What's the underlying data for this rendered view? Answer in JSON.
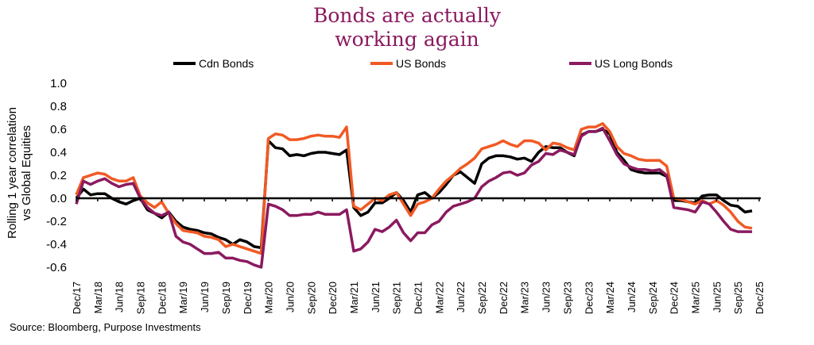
{
  "chart_data": {
    "type": "line",
    "title": "Bonds are actually working again",
    "title_lines": [
      "Bonds are actually",
      "working again"
    ],
    "title_color": "#8b1a5f",
    "ylabel_lines": [
      "Rolling 1 year correlation",
      "vs Global Equities"
    ],
    "xlabel": "",
    "ylim": [
      -0.6,
      1.0
    ],
    "yticks": [
      "1.0",
      "0.8",
      "0.6",
      "0.4",
      "0.2",
      "0.0",
      "-0.2",
      "-0.4",
      "-0.6"
    ],
    "ytick_values": [
      1.0,
      0.8,
      0.6,
      0.4,
      0.2,
      0.0,
      -0.2,
      -0.4,
      -0.6
    ],
    "xticks": [
      "Dec/17",
      "Mar/18",
      "Jun/18",
      "Sep/18",
      "Dec/18",
      "Mar/19",
      "Jun/19",
      "Sep/19",
      "Dec/19",
      "Mar/20",
      "Jun/20",
      "Sep/20",
      "Dec/20",
      "Mar/21",
      "Jun/21",
      "Sep/21",
      "Dec/21",
      "Mar/22",
      "Jun/22",
      "Sep/22",
      "Dec/22",
      "Mar/23",
      "Jun/23",
      "Sep/23",
      "Dec/23",
      "Mar/24",
      "Jun/24",
      "Sep/24",
      "Dec/24",
      "Mar/25",
      "Jun/25",
      "Sep/25",
      "Dec/25"
    ],
    "grid": false,
    "legend_position": "top",
    "x": [
      "2017-12",
      "2018-01",
      "2018-02",
      "2018-03",
      "2018-04",
      "2018-05",
      "2018-06",
      "2018-07",
      "2018-08",
      "2018-09",
      "2018-10",
      "2018-11",
      "2018-12",
      "2019-01",
      "2019-02",
      "2019-03",
      "2019-04",
      "2019-05",
      "2019-06",
      "2019-07",
      "2019-08",
      "2019-09",
      "2019-10",
      "2019-11",
      "2019-12",
      "2020-01",
      "2020-02",
      "2020-03",
      "2020-04",
      "2020-05",
      "2020-06",
      "2020-07",
      "2020-08",
      "2020-09",
      "2020-10",
      "2020-11",
      "2020-12",
      "2021-01",
      "2021-02",
      "2021-03",
      "2021-04",
      "2021-05",
      "2021-06",
      "2021-07",
      "2021-08",
      "2021-09",
      "2021-10",
      "2021-11",
      "2021-12",
      "2022-01",
      "2022-02",
      "2022-03",
      "2022-04",
      "2022-05",
      "2022-06",
      "2022-07",
      "2022-08",
      "2022-09",
      "2022-10",
      "2022-11",
      "2022-12",
      "2023-01",
      "2023-02",
      "2023-03",
      "2023-04",
      "2023-05",
      "2023-06",
      "2023-07",
      "2023-08",
      "2023-09",
      "2023-10",
      "2023-11",
      "2023-12",
      "2024-01",
      "2024-02",
      "2024-03",
      "2024-04",
      "2024-05",
      "2024-06",
      "2024-07",
      "2024-08",
      "2024-09",
      "2024-10",
      "2024-11",
      "2024-12",
      "2025-01",
      "2025-02",
      "2025-03",
      "2025-04",
      "2025-05",
      "2025-06",
      "2025-07",
      "2025-08",
      "2025-09",
      "2025-10",
      "2025-11"
    ],
    "series": [
      {
        "name": "Cdn Bonds",
        "color": "#000000",
        "values": [
          0.0,
          0.08,
          0.03,
          0.04,
          0.04,
          0.0,
          -0.03,
          -0.05,
          -0.02,
          0.0,
          -0.1,
          -0.13,
          -0.17,
          -0.12,
          -0.2,
          -0.25,
          -0.27,
          -0.28,
          -0.3,
          -0.31,
          -0.34,
          -0.36,
          -0.4,
          -0.36,
          -0.38,
          -0.42,
          -0.43,
          0.5,
          0.44,
          0.43,
          0.37,
          0.38,
          0.37,
          0.39,
          0.4,
          0.4,
          0.39,
          0.38,
          0.42,
          -0.08,
          -0.15,
          -0.12,
          -0.04,
          -0.04,
          0.0,
          0.05,
          -0.02,
          -0.12,
          0.03,
          0.05,
          0.0,
          0.05,
          0.12,
          0.2,
          0.23,
          0.18,
          0.13,
          0.3,
          0.35,
          0.37,
          0.37,
          0.36,
          0.34,
          0.35,
          0.32,
          0.4,
          0.45,
          0.44,
          0.44,
          0.4,
          0.37,
          0.55,
          0.58,
          0.58,
          0.6,
          0.56,
          0.4,
          0.33,
          0.25,
          0.23,
          0.22,
          0.22,
          0.22,
          0.19,
          -0.02,
          -0.02,
          -0.03,
          -0.04,
          0.02,
          0.03,
          0.03,
          -0.02,
          -0.06,
          -0.07,
          -0.12,
          -0.11
        ]
      },
      {
        "name": "US Bonds",
        "color": "#f15a24",
        "values": [
          0.03,
          0.18,
          0.2,
          0.22,
          0.21,
          0.17,
          0.15,
          0.15,
          0.18,
          0.02,
          -0.04,
          -0.08,
          -0.03,
          -0.13,
          -0.22,
          -0.28,
          -0.29,
          -0.3,
          -0.33,
          -0.34,
          -0.36,
          -0.42,
          -0.4,
          -0.42,
          -0.44,
          -0.46,
          -0.48,
          0.52,
          0.56,
          0.55,
          0.51,
          0.51,
          0.52,
          0.54,
          0.55,
          0.54,
          0.54,
          0.53,
          0.62,
          -0.07,
          -0.1,
          -0.05,
          0.0,
          -0.02,
          0.03,
          0.05,
          -0.05,
          -0.15,
          -0.05,
          -0.03,
          0.0,
          0.08,
          0.15,
          0.2,
          0.26,
          0.3,
          0.35,
          0.43,
          0.45,
          0.47,
          0.5,
          0.47,
          0.45,
          0.5,
          0.5,
          0.48,
          0.42,
          0.48,
          0.47,
          0.44,
          0.42,
          0.6,
          0.62,
          0.62,
          0.65,
          0.58,
          0.45,
          0.39,
          0.37,
          0.34,
          0.33,
          0.33,
          0.33,
          0.28,
          0.0,
          -0.01,
          -0.03,
          -0.05,
          -0.02,
          -0.05,
          -0.02,
          -0.06,
          -0.12,
          -0.2,
          -0.25,
          -0.26
        ]
      },
      {
        "name": "US Long Bonds",
        "color": "#8b1a5f",
        "values": [
          -0.05,
          0.15,
          0.12,
          0.15,
          0.17,
          0.13,
          0.1,
          0.12,
          0.13,
          0.0,
          -0.08,
          -0.13,
          -0.15,
          -0.12,
          -0.33,
          -0.38,
          -0.4,
          -0.44,
          -0.48,
          -0.48,
          -0.47,
          -0.52,
          -0.52,
          -0.54,
          -0.55,
          -0.58,
          -0.6,
          -0.05,
          -0.07,
          -0.1,
          -0.15,
          -0.15,
          -0.14,
          -0.14,
          -0.12,
          -0.14,
          -0.14,
          -0.14,
          -0.1,
          -0.46,
          -0.44,
          -0.38,
          -0.27,
          -0.29,
          -0.25,
          -0.19,
          -0.3,
          -0.37,
          -0.3,
          -0.3,
          -0.23,
          -0.2,
          -0.12,
          -0.07,
          -0.05,
          -0.03,
          0.0,
          0.1,
          0.15,
          0.18,
          0.22,
          0.23,
          0.2,
          0.22,
          0.29,
          0.32,
          0.39,
          0.38,
          0.42,
          0.4,
          0.38,
          0.54,
          0.58,
          0.58,
          0.61,
          0.5,
          0.38,
          0.3,
          0.27,
          0.25,
          0.25,
          0.24,
          0.25,
          0.2,
          -0.08,
          -0.09,
          -0.1,
          -0.12,
          -0.03,
          -0.05,
          -0.12,
          -0.2,
          -0.27,
          -0.29,
          -0.29,
          -0.29
        ]
      }
    ]
  },
  "source": "Source: Bloomberg, Purpose Investments"
}
